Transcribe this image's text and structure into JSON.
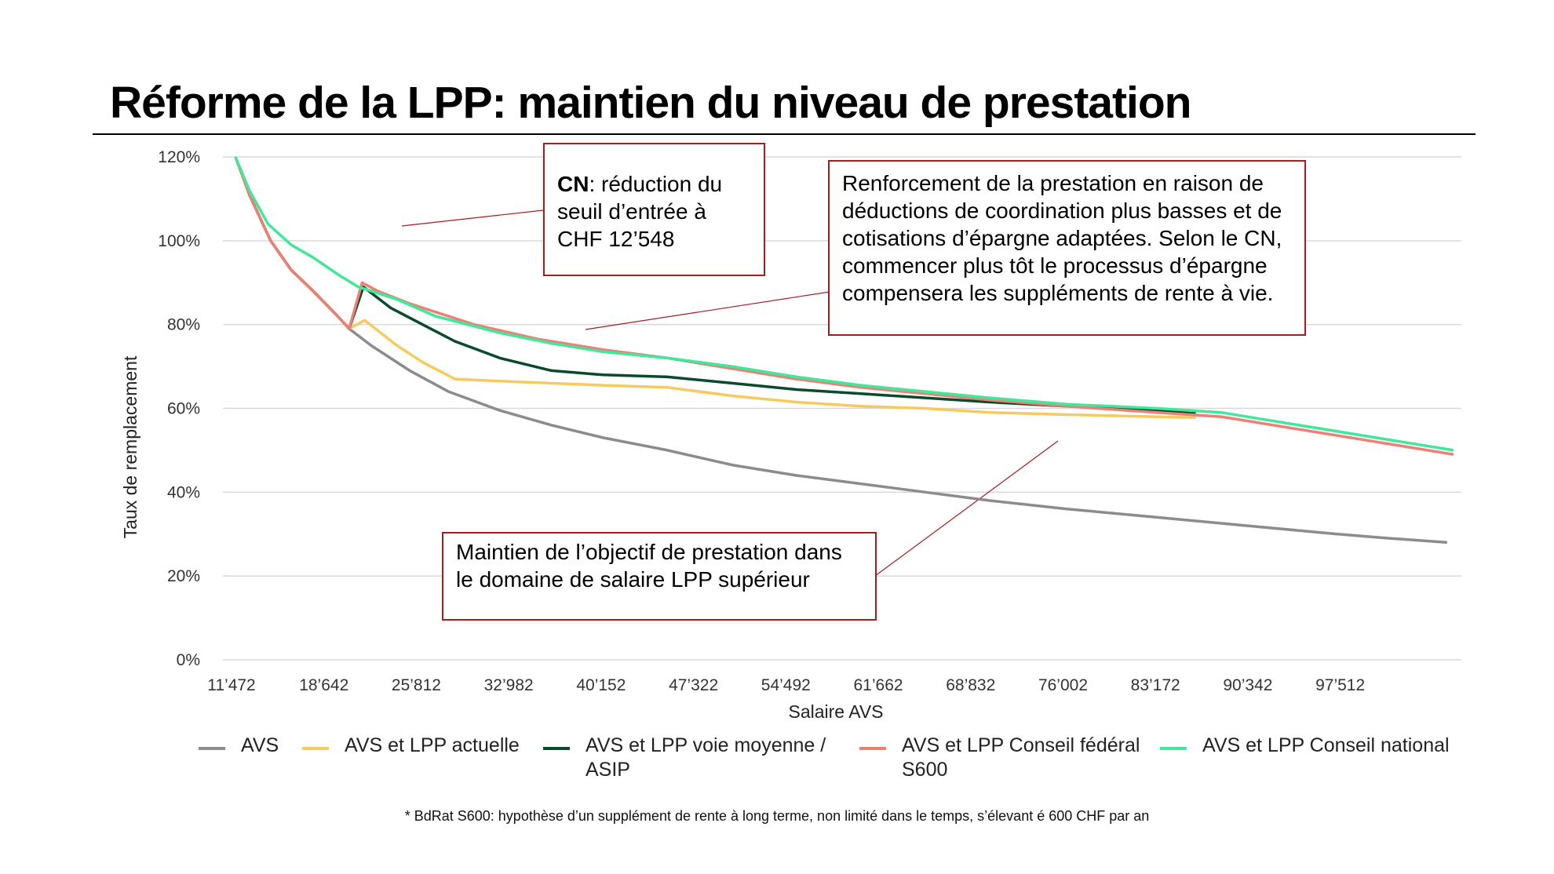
{
  "title": "Réforme de la LPP: maintien du niveau de prestation",
  "annotations": {
    "a1_bold": "CN",
    "a1_rest": ": réduction du seuil d’entrée à CHF 12’548",
    "a2": "Renforcement de la prestation en raison de déductions de coordination plus basses et de cotisations d’épargne adaptées. Selon le CN, commencer plus tôt le processus d’épargne compensera les suppléments de rente à vie.",
    "a3": "Maintien de l’objectif de prestation dans le domaine de salaire LPP supérieur"
  },
  "footnote": "* BdRat S600: hypothèse d’un supplément de rente à long terme, non limité dans le temps, s’élevant é 600 CHF par an",
  "chart_data": {
    "type": "line",
    "xlabel": "Salaire AVS",
    "ylabel": "Taux de remplacement",
    "x_ticks": [
      "11’472",
      "18’642",
      "25’812",
      "32’982",
      "40’152",
      "47’322",
      "54’492",
      "61’662",
      "68’832",
      "76’002",
      "83’172",
      "90’342",
      "97’512"
    ],
    "x_tick_values": [
      11472,
      18642,
      25812,
      32982,
      40152,
      47322,
      54492,
      61662,
      68832,
      76002,
      83172,
      90342,
      97512
    ],
    "xlim": [
      11472,
      106000
    ],
    "y_ticks": [
      "0%",
      "20%",
      "40%",
      "60%",
      "80%",
      "100%",
      "120%"
    ],
    "y_tick_values": [
      0,
      20,
      40,
      60,
      80,
      100,
      120
    ],
    "ylim": [
      0,
      120
    ],
    "grid": true,
    "legend_position": "bottom",
    "series": [
      {
        "name": "AVS",
        "color": "#8c8c8c",
        "points": [
          [
            11472,
            120
          ],
          [
            12548,
            111
          ],
          [
            14200,
            100
          ],
          [
            15800,
            93
          ],
          [
            17500,
            88
          ],
          [
            19400,
            82
          ],
          [
            20300,
            79
          ],
          [
            22000,
            75
          ],
          [
            25000,
            69
          ],
          [
            28000,
            64
          ],
          [
            32000,
            59.5
          ],
          [
            36000,
            56
          ],
          [
            40000,
            53
          ],
          [
            45000,
            50
          ],
          [
            50000,
            46.5
          ],
          [
            55000,
            44
          ],
          [
            60000,
            42
          ],
          [
            65000,
            40
          ],
          [
            70000,
            38
          ],
          [
            76000,
            36
          ],
          [
            83000,
            34
          ],
          [
            90000,
            32
          ],
          [
            97000,
            30
          ],
          [
            101000,
            29
          ],
          [
            105500,
            28
          ]
        ]
      },
      {
        "name": "AVS et LPP actuelle",
        "color": "#f7ca60",
        "points": [
          [
            11472,
            120
          ],
          [
            12548,
            111
          ],
          [
            14200,
            100
          ],
          [
            15800,
            93
          ],
          [
            17500,
            88
          ],
          [
            19400,
            82
          ],
          [
            20300,
            79
          ],
          [
            21500,
            81
          ],
          [
            24000,
            75
          ],
          [
            26000,
            71
          ],
          [
            28500,
            67
          ],
          [
            32000,
            66.5
          ],
          [
            40000,
            65.5
          ],
          [
            45000,
            65
          ],
          [
            50000,
            63
          ],
          [
            55000,
            61.5
          ],
          [
            60000,
            60.5
          ],
          [
            65000,
            60
          ],
          [
            70000,
            59
          ],
          [
            76000,
            58.5
          ],
          [
            83000,
            58
          ],
          [
            86000,
            57.8
          ]
        ]
      },
      {
        "name": "AVS et LPP voie moyenne / ASIP",
        "color": "#0b4a2a",
        "points": [
          [
            12548,
            111
          ],
          [
            14200,
            100
          ],
          [
            15800,
            93
          ],
          [
            17500,
            88
          ],
          [
            19400,
            82
          ],
          [
            20300,
            79
          ],
          [
            21400,
            89
          ],
          [
            23500,
            84
          ],
          [
            26000,
            80
          ],
          [
            28500,
            76
          ],
          [
            32000,
            72
          ],
          [
            36000,
            69
          ],
          [
            40000,
            68
          ],
          [
            45000,
            67.5
          ],
          [
            50000,
            66
          ],
          [
            55000,
            64.5
          ],
          [
            60000,
            63.5
          ],
          [
            65000,
            62.5
          ],
          [
            70000,
            61.5
          ],
          [
            76000,
            60.5
          ],
          [
            83000,
            59.5
          ],
          [
            86000,
            59
          ]
        ]
      },
      {
        "name": "AVS et LPP Conseil fédéral S600",
        "color": "#ee7f74",
        "points": [
          [
            11472,
            120
          ],
          [
            12548,
            111
          ],
          [
            14200,
            100
          ],
          [
            15800,
            93
          ],
          [
            17500,
            88
          ],
          [
            19400,
            82
          ],
          [
            20300,
            79
          ],
          [
            21300,
            90
          ],
          [
            22500,
            88
          ],
          [
            25000,
            85
          ],
          [
            30000,
            80
          ],
          [
            35000,
            76.5
          ],
          [
            40000,
            74
          ],
          [
            45000,
            72
          ],
          [
            50000,
            69.5
          ],
          [
            55000,
            67
          ],
          [
            60000,
            65
          ],
          [
            65000,
            63.5
          ],
          [
            70000,
            62
          ],
          [
            76000,
            60.5
          ],
          [
            83000,
            59
          ],
          [
            88000,
            58
          ],
          [
            94000,
            55
          ],
          [
            100000,
            52
          ],
          [
            106000,
            49
          ]
        ]
      },
      {
        "name": "AVS et LPP Conseil national",
        "color": "#3fe89a",
        "points": [
          [
            11472,
            120
          ],
          [
            12548,
            112
          ],
          [
            14000,
            104
          ],
          [
            15800,
            99
          ],
          [
            17500,
            96
          ],
          [
            19400,
            92
          ],
          [
            21000,
            89
          ],
          [
            24000,
            86
          ],
          [
            27000,
            82
          ],
          [
            32000,
            78
          ],
          [
            36000,
            75.5
          ],
          [
            40000,
            73.5
          ],
          [
            45000,
            72
          ],
          [
            50000,
            70
          ],
          [
            55000,
            67.5
          ],
          [
            60000,
            65.5
          ],
          [
            65000,
            64
          ],
          [
            70000,
            62.5
          ],
          [
            76000,
            61
          ],
          [
            83000,
            60
          ],
          [
            88000,
            59
          ],
          [
            94000,
            56
          ],
          [
            100000,
            53
          ],
          [
            106000,
            50
          ]
        ]
      }
    ]
  }
}
